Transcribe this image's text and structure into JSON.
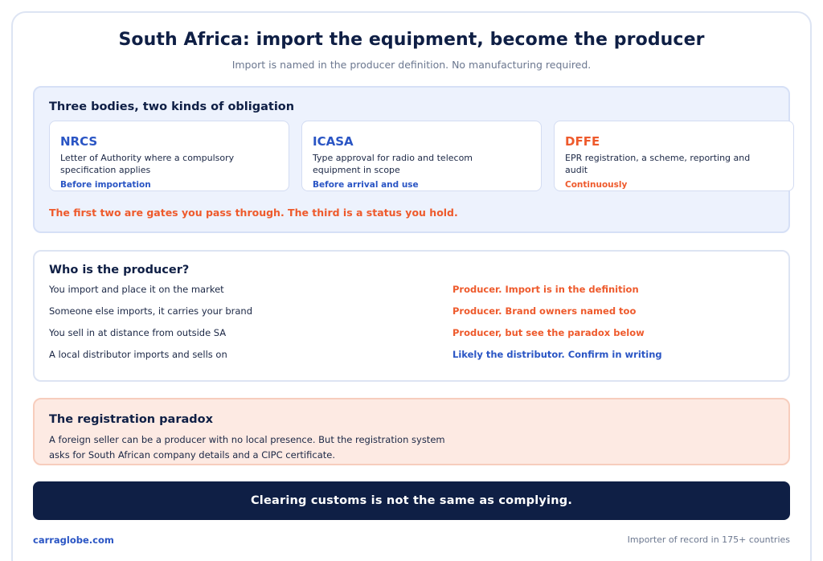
{
  "header": {
    "title": "South Africa: import the equipment, become the producer",
    "subtitle": "Import is named in the producer definition. No manufacturing required."
  },
  "bodies": {
    "heading": "Three bodies, two kinds of obligation",
    "items": [
      {
        "name": "NRCS",
        "desc": "Letter of Authority where a compulsory specification applies",
        "timing": "Before importation"
      },
      {
        "name": "ICASA",
        "desc": "Type approval for radio and telecom equipment in scope",
        "timing": "Before arrival and use"
      },
      {
        "name": "DFFE",
        "desc": "EPR registration, a scheme, reporting and audit",
        "timing": "Continuously"
      }
    ],
    "note": "The first two are gates you pass through. The third is a status you hold."
  },
  "producer": {
    "heading": "Who is the producer?",
    "rows": [
      {
        "scenario": "You import and place it on the market",
        "verdict": "Producer. Import is in the definition"
      },
      {
        "scenario": "Someone else imports, it carries your brand",
        "verdict": "Producer. Brand owners named too"
      },
      {
        "scenario": "You sell in at distance from outside SA",
        "verdict": "Producer, but see the paradox below"
      },
      {
        "scenario": "A local distributor imports and sells on",
        "verdict": "Likely the distributor. Confirm in writing"
      }
    ]
  },
  "paradox": {
    "heading": "The registration paradox",
    "text": "A foreign seller can be a producer with no local presence. But the registration system asks for South African company details and a CIPC certificate."
  },
  "banner": {
    "text": "Clearing customs is not the same as complying."
  },
  "footer": {
    "site": "carraglobe.com",
    "tagline": "Importer of record in 175+ countries"
  },
  "colors": {
    "navy": "#0f1f45",
    "blue": "#2a55c4",
    "orange": "#ee5a2c",
    "panel_blue": "#edf2fd",
    "panel_peach": "#fdeae3"
  }
}
